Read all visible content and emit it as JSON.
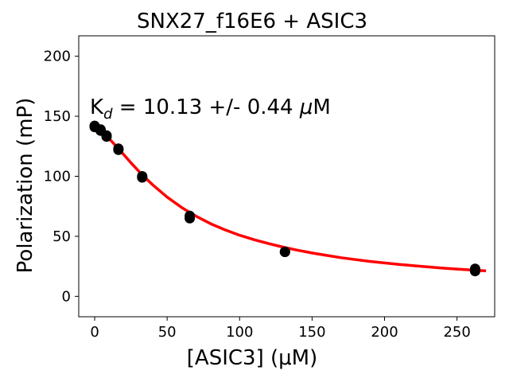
{
  "chart_data": {
    "type": "scatter",
    "title": "SNX27_f16E6 + ASIC3",
    "xlabel": "[ASIC3] (μM)",
    "ylabel": "Polarization (mP)",
    "xlim": [
      -11,
      276
    ],
    "ylim": [
      -17,
      217
    ],
    "xticks": [
      0,
      50,
      100,
      150,
      200,
      250
    ],
    "yticks": [
      0,
      50,
      100,
      150,
      200
    ],
    "annotation": {
      "prefix": "K",
      "subscript": "d",
      "text": " = 10.13 +/- 0.44 ",
      "unit_italic": "μ",
      "unit": "M"
    },
    "series": [
      {
        "kind": "points",
        "color": "#000000",
        "x": [
          0,
          0,
          4.1,
          4.1,
          8.2,
          8.2,
          16.4,
          16.4,
          32.8,
          32.8,
          65.6,
          65.6,
          131.3,
          131.3,
          262.5,
          262.5
        ],
        "y": [
          142,
          141,
          139,
          138,
          134,
          133,
          123,
          122,
          100,
          99,
          67,
          65,
          37,
          37,
          23,
          21
        ]
      },
      {
        "kind": "fit",
        "color": "#ff0000",
        "x": [
          0,
          4,
          8,
          12,
          16,
          20,
          25,
          30,
          35,
          40,
          50,
          60,
          70,
          80,
          90,
          100,
          110,
          120,
          130,
          140,
          150,
          160,
          170,
          180,
          190,
          200,
          210,
          220,
          230,
          240,
          250,
          260,
          270
        ],
        "y": [
          142.5,
          138.9,
          133.9,
          128.7,
          123.5,
          118.1,
          111.3,
          104.8,
          98.7,
          92.9,
          82.6,
          74.0,
          66.7,
          60.5,
          55.3,
          50.9,
          47.2,
          43.9,
          41.0,
          38.4,
          36.1,
          34.1,
          32.2,
          30.6,
          29.1,
          27.8,
          26.6,
          25.5,
          24.5,
          23.5,
          22.7,
          21.9,
          21.2
        ]
      }
    ]
  }
}
